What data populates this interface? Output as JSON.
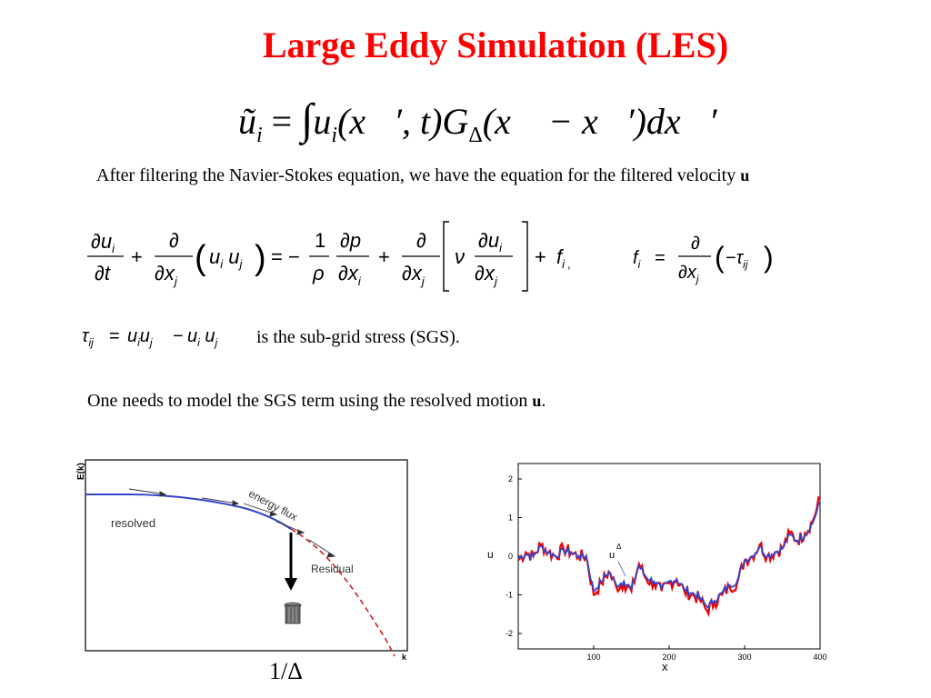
{
  "title": "Large Eddy Simulation (LES)",
  "filter_eq": {
    "lhs": "ũ",
    "lhs_sub": "i",
    "eq": "=",
    "integral": "∫",
    "rhs": "u",
    "rhs_sub": "i",
    "args": "(x⃗′, t)G",
    "g_sub": "Δ",
    "rest": "(x⃗ − x⃗′)dx⃗′"
  },
  "paragraph1": "After filtering the Navier-Stokes equation, we have the equation for the filtered velocity",
  "paragraph1_symbol": "u",
  "ns_eq": {
    "text": "∂u_i/∂t + ∂/∂x_j (u_i u_j) = −(1/ρ) ∂p/∂x_i + ∂/∂x_j [ν ∂u_i/∂x_j] + f_i,",
    "force": "f_i = ∂/∂x_j (−τ_ij)"
  },
  "sgs_def": {
    "eq": "τ_ij = u_i u_j − u_i u_j",
    "text": "is the sub-grid stress (SGS)."
  },
  "paragraph2": "One needs to model the SGS term  using the resolved motion",
  "paragraph2_symbol": "u",
  "paragraph2_end": ".",
  "left_plot": {
    "ylabel": "E(k)",
    "xlabel": "k",
    "label_resolved": "resolved",
    "label_flux": "energy flux",
    "label_residual": "Residual",
    "caption": "1/Δ",
    "colors": {
      "resolved": "#3344cc",
      "residual": "#cc2222",
      "arrow": "#000000"
    }
  },
  "right_plot": {
    "ylabel": "u",
    "xlabel": "x",
    "annotation": "u",
    "annotation_sup": "Δ",
    "xticks": [
      "100",
      "200",
      "300",
      "400"
    ],
    "yticks": [
      "2",
      "1",
      "0",
      "-1",
      "-2"
    ],
    "colors": {
      "red": "#ee0000",
      "blue": "#3344cc"
    }
  },
  "chart_data": {
    "type": "line",
    "xlabel": "x",
    "ylabel": "u",
    "xlim": [
      0,
      400
    ],
    "ylim": [
      -2.4,
      2.4
    ],
    "x": [
      0,
      10,
      20,
      30,
      40,
      50,
      60,
      70,
      80,
      90,
      100,
      110,
      120,
      130,
      140,
      150,
      160,
      170,
      180,
      190,
      200,
      210,
      220,
      230,
      240,
      250,
      260,
      270,
      280,
      290,
      300,
      310,
      320,
      330,
      340,
      350,
      360,
      370,
      380,
      390,
      400
    ],
    "series": [
      {
        "values": [
          -0.1,
          0.1,
          0.0,
          0.3,
          0.1,
          0.0,
          0.2,
          0.1,
          0.0,
          0.0,
          -1.0,
          -0.7,
          -0.4,
          -0.8,
          -0.7,
          -0.9,
          -0.2,
          -0.6,
          -0.7,
          -0.9,
          -0.7,
          -0.6,
          -0.9,
          -1.0,
          -1.1,
          -1.4,
          -1.2,
          -1.0,
          -0.8,
          -0.7,
          -0.1,
          0.0,
          0.3,
          0.0,
          0.1,
          0.2,
          0.6,
          0.4,
          0.6,
          0.9,
          1.5
        ]
      },
      {
        "values": [
          -0.05,
          0.05,
          0.0,
          0.25,
          0.1,
          0.0,
          0.15,
          0.1,
          0.0,
          0.0,
          -0.9,
          -0.65,
          -0.4,
          -0.75,
          -0.65,
          -0.85,
          -0.25,
          -0.55,
          -0.65,
          -0.85,
          -0.65,
          -0.6,
          -0.85,
          -0.95,
          -1.05,
          -1.3,
          -1.15,
          -0.95,
          -0.75,
          -0.65,
          -0.1,
          0.0,
          0.25,
          0.0,
          0.1,
          0.2,
          0.55,
          0.4,
          0.55,
          0.85,
          1.4
        ]
      }
    ]
  }
}
